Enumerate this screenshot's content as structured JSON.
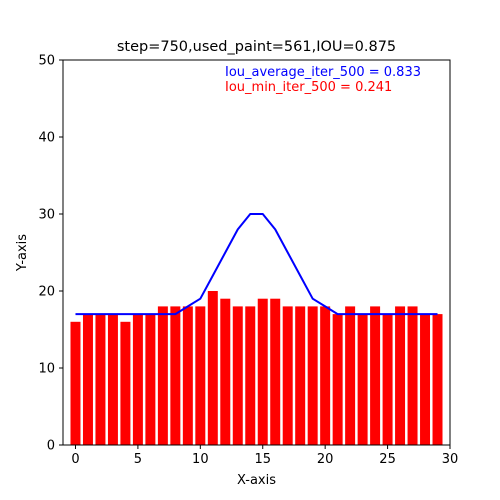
{
  "colors": {
    "bars": "#ff0000",
    "line": "#0000ff",
    "annotation_avg": "#0000ff",
    "annotation_min": "#ff0000"
  },
  "chart_data": {
    "type": "bar",
    "title": "step=750,used_paint=561,IOU=0.875",
    "xlabel": "X-axis",
    "ylabel": "Y-axis",
    "xlim": [
      -1,
      30
    ],
    "ylim": [
      0,
      50
    ],
    "xticks": [
      "0",
      "5",
      "10",
      "15",
      "20",
      "25",
      "30"
    ],
    "yticks": [
      "0",
      "10",
      "20",
      "30",
      "40",
      "50"
    ],
    "grid": false,
    "bars": {
      "x": [
        0,
        1,
        2,
        3,
        4,
        5,
        6,
        7,
        8,
        9,
        10,
        11,
        12,
        13,
        14,
        15,
        16,
        17,
        18,
        19,
        20,
        21,
        22,
        23,
        24,
        25,
        26,
        27,
        28,
        29
      ],
      "values": [
        16,
        17,
        17,
        17,
        16,
        17,
        17,
        18,
        18,
        18,
        18,
        20,
        19,
        18,
        18,
        19,
        19,
        18,
        18,
        18,
        18,
        17,
        18,
        17,
        18,
        17,
        18,
        18,
        17,
        17
      ]
    },
    "line": {
      "x": [
        0,
        1,
        2,
        3,
        4,
        5,
        6,
        7,
        8,
        9,
        10,
        11,
        12,
        13,
        14,
        15,
        16,
        17,
        18,
        19,
        20,
        21,
        22,
        23,
        24,
        25,
        26,
        27,
        28,
        29
      ],
      "y": [
        17,
        17,
        17,
        17,
        17,
        17,
        17,
        17,
        17,
        18,
        19,
        22,
        25,
        28,
        30,
        30,
        28,
        25,
        22,
        19,
        18,
        17,
        17,
        17,
        17,
        17,
        17,
        17,
        17,
        17
      ]
    },
    "annotations": [
      {
        "text": "Iou_average_iter_500 = 0.833",
        "color": "#0000ff"
      },
      {
        "text": "Iou_min_iter_500 = 0.241",
        "color": "#ff0000"
      }
    ]
  }
}
